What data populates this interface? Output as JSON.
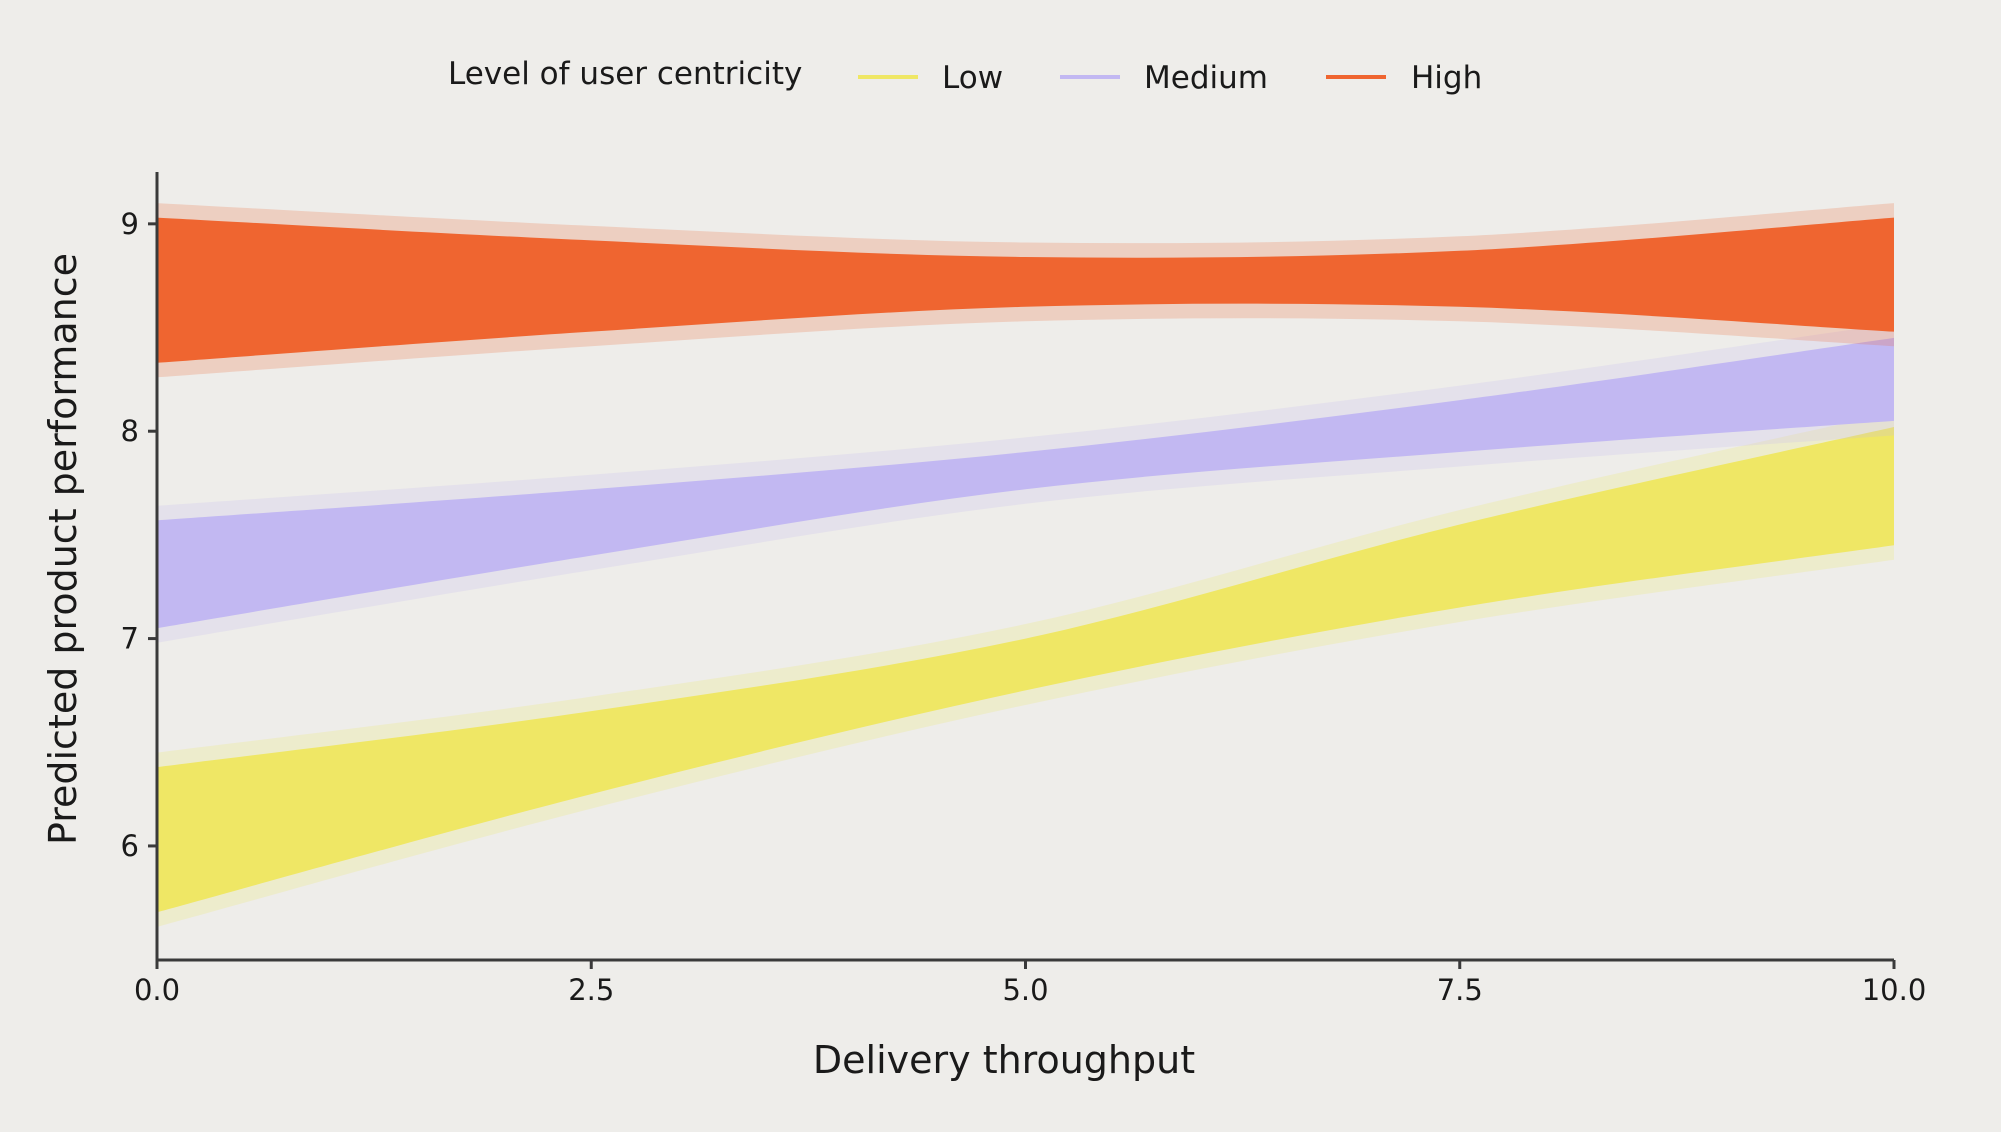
{
  "chart_data": {
    "type": "area",
    "title": "",
    "xlabel": "Delivery throughput",
    "ylabel": "Predicted product performance",
    "xlim": [
      0,
      10
    ],
    "ylim": [
      5.45,
      9.25
    ],
    "x_ticks": [
      0,
      2.5,
      5,
      7.5,
      10
    ],
    "x_tick_labels": [
      "0.0",
      "2.5",
      "5.0",
      "7.5",
      "10.0"
    ],
    "y_ticks": [
      6,
      7,
      8,
      9
    ],
    "y_tick_labels": [
      "6",
      "7",
      "8",
      "9"
    ],
    "grid": false,
    "legend": {
      "title": "Level of user centricity",
      "placement": "top"
    },
    "x": [
      0,
      2.5,
      5,
      7.5,
      10
    ],
    "series": [
      {
        "name": "Low",
        "color": "#efe765",
        "lower": [
          5.68,
          6.25,
          6.75,
          7.15,
          7.45
        ],
        "upper": [
          6.38,
          6.65,
          7.0,
          7.55,
          8.02
        ]
      },
      {
        "name": "Medium",
        "color": "#c2b8f2",
        "lower": [
          7.05,
          7.4,
          7.72,
          7.9,
          8.05
        ],
        "upper": [
          7.57,
          7.72,
          7.9,
          8.15,
          8.45
        ]
      },
      {
        "name": "High",
        "color": "#ef6530",
        "lower": [
          8.33,
          8.48,
          8.6,
          8.6,
          8.48
        ],
        "upper": [
          9.03,
          8.92,
          8.84,
          8.87,
          9.03
        ]
      }
    ]
  }
}
